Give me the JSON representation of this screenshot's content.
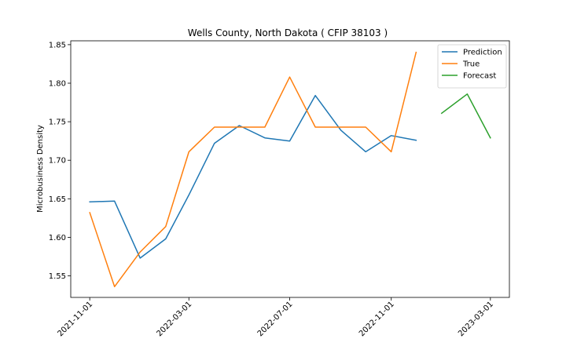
{
  "chart_data": {
    "type": "line",
    "title": "Wells County, North Dakota ( CFIP 38103 )",
    "xlabel": "",
    "ylabel": "Microbusiness Density",
    "ylim": [
      1.522,
      1.855
    ],
    "xlim": [
      "2021-10-09",
      "2023-03-24"
    ],
    "yticks": [
      1.55,
      1.6,
      1.65,
      1.7,
      1.75,
      1.8,
      1.85
    ],
    "ytick_labels": [
      "1.55",
      "1.60",
      "1.65",
      "1.70",
      "1.75",
      "1.80",
      "1.85"
    ],
    "xticks": [
      "2021-11-01",
      "2022-03-01",
      "2022-07-01",
      "2022-11-01",
      "2023-03-01"
    ],
    "xtick_labels": [
      "2021-11-01",
      "2022-03-01",
      "2022-07-01",
      "2022-11-01",
      "2023-03-01"
    ],
    "legend_position": "top-right",
    "grid": false,
    "series": [
      {
        "name": "Prediction",
        "color": "#1f77b4",
        "x": [
          "2021-11-01",
          "2021-12-01",
          "2022-01-01",
          "2022-02-01",
          "2022-03-01",
          "2022-04-01",
          "2022-05-01",
          "2022-06-01",
          "2022-07-01",
          "2022-08-01",
          "2022-09-01",
          "2022-10-01",
          "2022-11-01",
          "2022-12-01"
        ],
        "values": [
          1.646,
          1.647,
          1.573,
          1.598,
          1.655,
          1.722,
          1.745,
          1.729,
          1.725,
          1.784,
          1.739,
          1.711,
          1.732,
          1.726
        ]
      },
      {
        "name": "True",
        "color": "#ff7f0e",
        "x": [
          "2021-11-01",
          "2021-12-01",
          "2022-01-01",
          "2022-02-01",
          "2022-03-01",
          "2022-04-01",
          "2022-05-01",
          "2022-06-01",
          "2022-07-01",
          "2022-08-01",
          "2022-09-01",
          "2022-10-01",
          "2022-11-01",
          "2022-12-01"
        ],
        "values": [
          1.632,
          1.536,
          1.581,
          1.614,
          1.711,
          1.743,
          1.743,
          1.743,
          1.808,
          1.743,
          1.743,
          1.743,
          1.711,
          1.84
        ]
      },
      {
        "name": "Forecast",
        "color": "#2ca02c",
        "x": [
          "2023-01-01",
          "2023-02-01",
          "2023-03-01"
        ],
        "values": [
          1.761,
          1.786,
          1.729
        ]
      }
    ]
  }
}
